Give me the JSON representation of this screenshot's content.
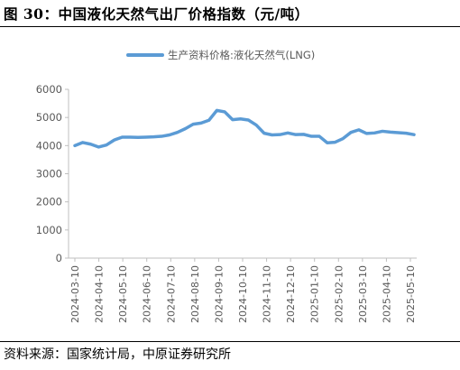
{
  "header": {
    "title": "图 30：中国液化天然气出厂价格指数（元/吨）"
  },
  "footer": {
    "source": "资料来源：国家统计局，中原证券研究所"
  },
  "colors": {
    "series": "#5B9BD5",
    "axis": "#BFBFBF",
    "text": "#595959"
  },
  "chart_data": {
    "type": "line",
    "title": "",
    "xlabel": "",
    "ylabel": "",
    "ylim": [
      0,
      6000
    ],
    "yticks": [
      0,
      1000,
      2000,
      3000,
      4000,
      5000,
      6000
    ],
    "grid": false,
    "legend": "top-center",
    "x_ticks": [
      "2024-03-10",
      "2024-04-10",
      "2024-05-10",
      "2024-06-10",
      "2024-07-10",
      "2024-08-10",
      "2024-09-10",
      "2024-10-10",
      "2024-11-10",
      "2024-12-10",
      "2025-01-10",
      "2025-02-10",
      "2025-03-10",
      "2025-04-10",
      "2025-05-10"
    ],
    "series": [
      {
        "name": "生产资料价格:液化天然气(LNG)",
        "values": [
          4000,
          4110,
          4050,
          3950,
          4020,
          4200,
          4300,
          4300,
          4290,
          4300,
          4310,
          4330,
          4380,
          4470,
          4600,
          4760,
          4800,
          4900,
          5250,
          5200,
          4920,
          4950,
          4910,
          4730,
          4440,
          4380,
          4390,
          4450,
          4390,
          4400,
          4330,
          4330,
          4100,
          4120,
          4250,
          4470,
          4560,
          4430,
          4450,
          4510,
          4480,
          4460,
          4440,
          4390
        ]
      }
    ]
  }
}
